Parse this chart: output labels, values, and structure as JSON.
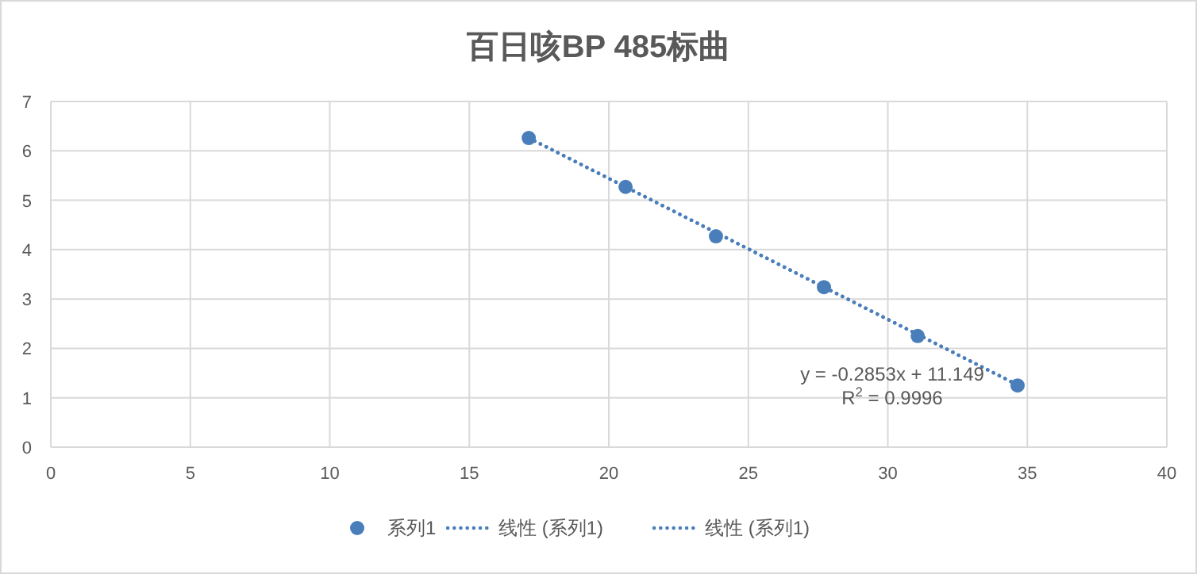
{
  "chart_data": {
    "type": "scatter",
    "title": "百日咳BP 485标曲",
    "xlim": [
      0,
      40
    ],
    "xticks": [
      0,
      5,
      10,
      15,
      20,
      25,
      30,
      35,
      40
    ],
    "ylim": [
      0,
      7
    ],
    "yticks": [
      0,
      1,
      2,
      3,
      4,
      5,
      6,
      7
    ],
    "grid": true,
    "legend": "bottom",
    "series": [
      {
        "name": "系列1",
        "marker": "circle",
        "color": "#4a7ebb",
        "x": [
          17.13,
          20.6,
          23.84,
          27.71,
          31.07,
          34.65
        ],
        "values": [
          6.26,
          5.27,
          4.27,
          3.24,
          2.25,
          1.25
        ]
      },
      {
        "name": "线性 (系列1)",
        "type": "line",
        "line_style": "dotted",
        "color": "#4a7ebb",
        "x": [
          17.13,
          34.65
        ],
        "values": [
          6.26,
          1.26
        ]
      },
      {
        "name": "线性 (系列1)",
        "type": "line",
        "line_style": "dotted",
        "color": "#4a7ebb",
        "x": [
          17.13,
          34.65
        ],
        "values": [
          6.26,
          1.26
        ]
      }
    ],
    "annotations": [
      "y = -0.2853x + 11.149",
      "R$^{2}$ = 0.9996"
    ]
  }
}
